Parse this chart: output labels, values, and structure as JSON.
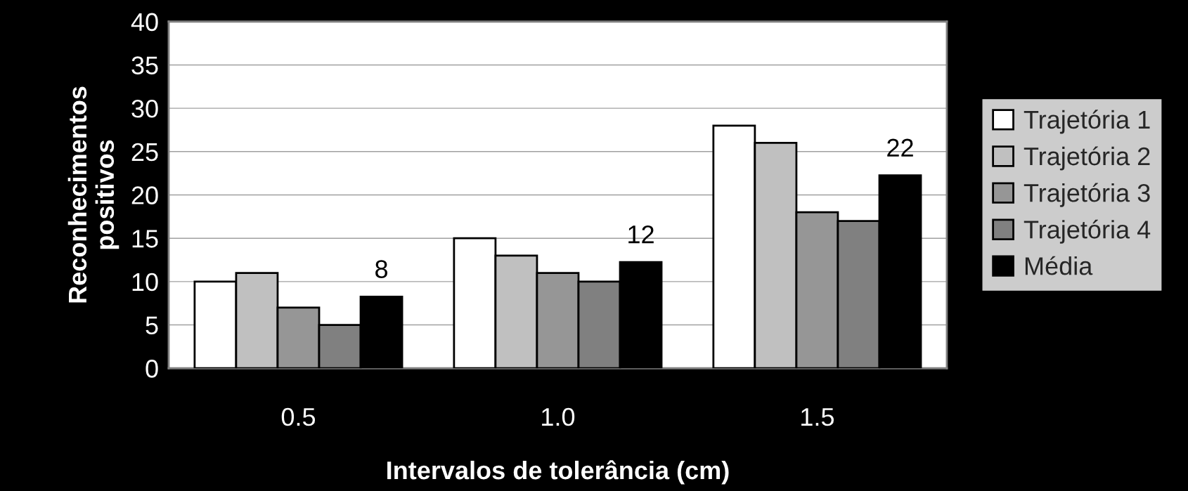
{
  "chart_data": {
    "type": "bar",
    "xlabel": "Intervalos de tolerância (cm)",
    "ylabel": "Reconhecimentos\npositivos",
    "categories": [
      "0.5",
      "1.0",
      "1.5"
    ],
    "series": [
      {
        "name": "Trajetória 1",
        "color": "#ffffff",
        "values": [
          10,
          15,
          28
        ]
      },
      {
        "name": "Trajetória 2",
        "color": "#c0c0c0",
        "values": [
          11,
          13,
          26
        ]
      },
      {
        "name": "Trajetória 3",
        "color": "#969696",
        "values": [
          7,
          11,
          18
        ]
      },
      {
        "name": "Trajetória 4",
        "color": "#808080",
        "values": [
          5,
          10,
          17
        ]
      },
      {
        "name": "Média",
        "color": "#000000",
        "values": [
          8.25,
          12.25,
          22.25
        ],
        "value_labels": [
          "8",
          "12",
          "22"
        ]
      }
    ],
    "ylim": [
      0,
      40
    ],
    "yticks": [
      0,
      5,
      10,
      15,
      20,
      25,
      30,
      35,
      40
    ],
    "grid": "y",
    "legend": "right"
  }
}
